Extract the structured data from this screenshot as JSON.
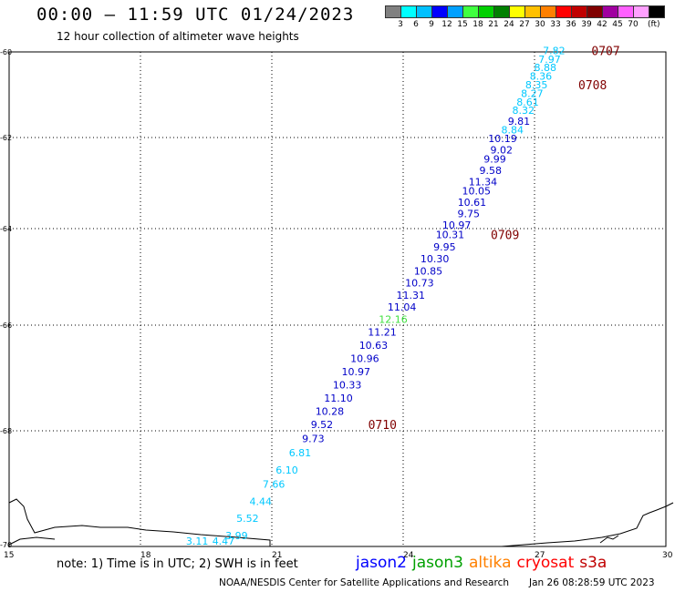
{
  "header": {
    "title": "00:00 – 11:59 UTC 01/24/2023",
    "subtitle": "12 hour collection of altimeter wave heights"
  },
  "legend": {
    "colors": [
      "#808080",
      "#00ffff",
      "#00c0ff",
      "#0000ff",
      "#00a0ff",
      "#40ff40",
      "#00d000",
      "#008000",
      "#ffff00",
      "#ffc000",
      "#ff8000",
      "#ff0000",
      "#c00000",
      "#800000",
      "#a000a0",
      "#ff60ff",
      "#ffa0ff",
      "#000000"
    ],
    "labels": [
      "3",
      "6",
      "9",
      "12",
      "15",
      "18",
      "21",
      "24",
      "27",
      "30",
      "33",
      "36",
      "39",
      "42",
      "45",
      "70"
    ],
    "unit": "(ft)"
  },
  "axes": {
    "x_ticks": [
      "15",
      "18",
      "21",
      "24",
      "27",
      "30"
    ],
    "y_ticks": [
      "-60",
      "-62",
      "-64",
      "-66",
      "-68",
      "-70"
    ]
  },
  "points": [
    {
      "v": "7.82",
      "lon": 27.7,
      "lat": -60.05,
      "c": "#00c8ff"
    },
    {
      "v": "7.97",
      "lon": 27.6,
      "lat": -60.25,
      "c": "#00c8ff"
    },
    {
      "v": "8.88",
      "lon": 27.5,
      "lat": -60.45,
      "c": "#00c8ff"
    },
    {
      "v": "8.36",
      "lon": 27.4,
      "lat": -60.65,
      "c": "#00c8ff"
    },
    {
      "v": "8.35",
      "lon": 27.3,
      "lat": -60.85,
      "c": "#00c8ff"
    },
    {
      "v": "8.27",
      "lon": 27.2,
      "lat": -61.05,
      "c": "#00c8ff"
    },
    {
      "v": "8.61",
      "lon": 27.1,
      "lat": -61.25,
      "c": "#00c8ff"
    },
    {
      "v": "8.32",
      "lon": 27.0,
      "lat": -61.45,
      "c": "#00c8ff"
    },
    {
      "v": "9.81",
      "lon": 26.9,
      "lat": -61.7,
      "c": "#0000c8"
    },
    {
      "v": "8.84",
      "lon": 26.75,
      "lat": -61.9,
      "c": "#00c8ff"
    },
    {
      "v": "10.19",
      "lon": 26.6,
      "lat": -62.1,
      "c": "#0000c8"
    },
    {
      "v": "9.02",
      "lon": 26.5,
      "lat": -62.35,
      "c": "#0000c8"
    },
    {
      "v": "9.99",
      "lon": 26.35,
      "lat": -62.55,
      "c": "#0000c8"
    },
    {
      "v": "9.58",
      "lon": 26.25,
      "lat": -62.8,
      "c": "#0000c8"
    },
    {
      "v": "11.34",
      "lon": 26.15,
      "lat": -63.05,
      "c": "#0000c8"
    },
    {
      "v": "10.05",
      "lon": 26.0,
      "lat": -63.25,
      "c": "#0000c8"
    },
    {
      "v": "10.61",
      "lon": 25.9,
      "lat": -63.5,
      "c": "#0000c8"
    },
    {
      "v": "9.75",
      "lon": 25.75,
      "lat": -63.75,
      "c": "#0000c8"
    },
    {
      "v": "10.97",
      "lon": 25.55,
      "lat": -64.0,
      "c": "#0000c8"
    },
    {
      "v": "10.31",
      "lon": 25.4,
      "lat": -64.2,
      "c": "#0000c8"
    },
    {
      "v": "9.95",
      "lon": 25.2,
      "lat": -64.45,
      "c": "#0000c8"
    },
    {
      "v": "10.30",
      "lon": 25.05,
      "lat": -64.7,
      "c": "#0000c8"
    },
    {
      "v": "10.85",
      "lon": 24.9,
      "lat": -64.95,
      "c": "#0000c8"
    },
    {
      "v": "10.73",
      "lon": 24.7,
      "lat": -65.2,
      "c": "#0000c8"
    },
    {
      "v": "11.31",
      "lon": 24.5,
      "lat": -65.45,
      "c": "#0000c8"
    },
    {
      "v": "11.04",
      "lon": 24.3,
      "lat": -65.7,
      "c": "#0000c8"
    },
    {
      "v": "12.16",
      "lon": 24.1,
      "lat": -65.95,
      "c": "#40e040"
    },
    {
      "v": "11.21",
      "lon": 23.85,
      "lat": -66.2,
      "c": "#0000c8"
    },
    {
      "v": "10.63",
      "lon": 23.65,
      "lat": -66.45,
      "c": "#0000c8"
    },
    {
      "v": "10.96",
      "lon": 23.45,
      "lat": -66.7,
      "c": "#0000c8"
    },
    {
      "v": "10.97",
      "lon": 23.25,
      "lat": -66.95,
      "c": "#0000c8"
    },
    {
      "v": "10.33",
      "lon": 23.05,
      "lat": -67.2,
      "c": "#0000c8"
    },
    {
      "v": "11.10",
      "lon": 22.85,
      "lat": -67.45,
      "c": "#0000c8"
    },
    {
      "v": "10.28",
      "lon": 22.65,
      "lat": -67.7,
      "c": "#0000c8"
    },
    {
      "v": "9.52",
      "lon": 22.4,
      "lat": -67.95,
      "c": "#0000c8"
    },
    {
      "v": "9.73",
      "lon": 22.2,
      "lat": -68.2,
      "c": "#0000c8"
    },
    {
      "v": "6.81",
      "lon": 21.9,
      "lat": -68.45,
      "c": "#00c8ff"
    },
    {
      "v": "6.10",
      "lon": 21.6,
      "lat": -68.75,
      "c": "#00c8ff"
    },
    {
      "v": "7.66",
      "lon": 21.3,
      "lat": -69.0,
      "c": "#00c8ff"
    },
    {
      "v": "4.44",
      "lon": 21.0,
      "lat": -69.3,
      "c": "#00c8ff"
    },
    {
      "v": "5.52",
      "lon": 20.7,
      "lat": -69.6,
      "c": "#00c8ff"
    },
    {
      "v": "3.99",
      "lon": 20.45,
      "lat": -69.9,
      "c": "#00c8ff"
    },
    {
      "v": "4.47",
      "lon": 20.15,
      "lat": -70.15,
      "c": "#00c8ff"
    },
    {
      "v": "3.11",
      "lon": 19.55,
      "lat": -70.5,
      "c": "#00c8ff"
    }
  ],
  "time_labels": [
    {
      "v": "0707",
      "lon": 28.3,
      "lat": -60.05
    },
    {
      "v": "0708",
      "lon": 28.0,
      "lat": -60.85
    },
    {
      "v": "0709",
      "lon": 26.0,
      "lat": -64.2
    },
    {
      "v": "0710",
      "lon": 23.2,
      "lat": -67.95
    }
  ],
  "footer": {
    "note": "note: 1) Time is in UTC; 2) SWH is in feet",
    "sats": [
      {
        "name": "jason2",
        "color": "#0000ff"
      },
      {
        "name": "jason3",
        "color": "#00a000"
      },
      {
        "name": "altika",
        "color": "#ff8000"
      },
      {
        "name": "cryosat",
        "color": "#ff0000"
      },
      {
        "name": "s3a",
        "color": "#c00000"
      }
    ],
    "credit": "NOAA/NESDIS Center for Satellite Applications and Research",
    "stamp": "Jan 26 08:28:59 UTC 2023"
  }
}
